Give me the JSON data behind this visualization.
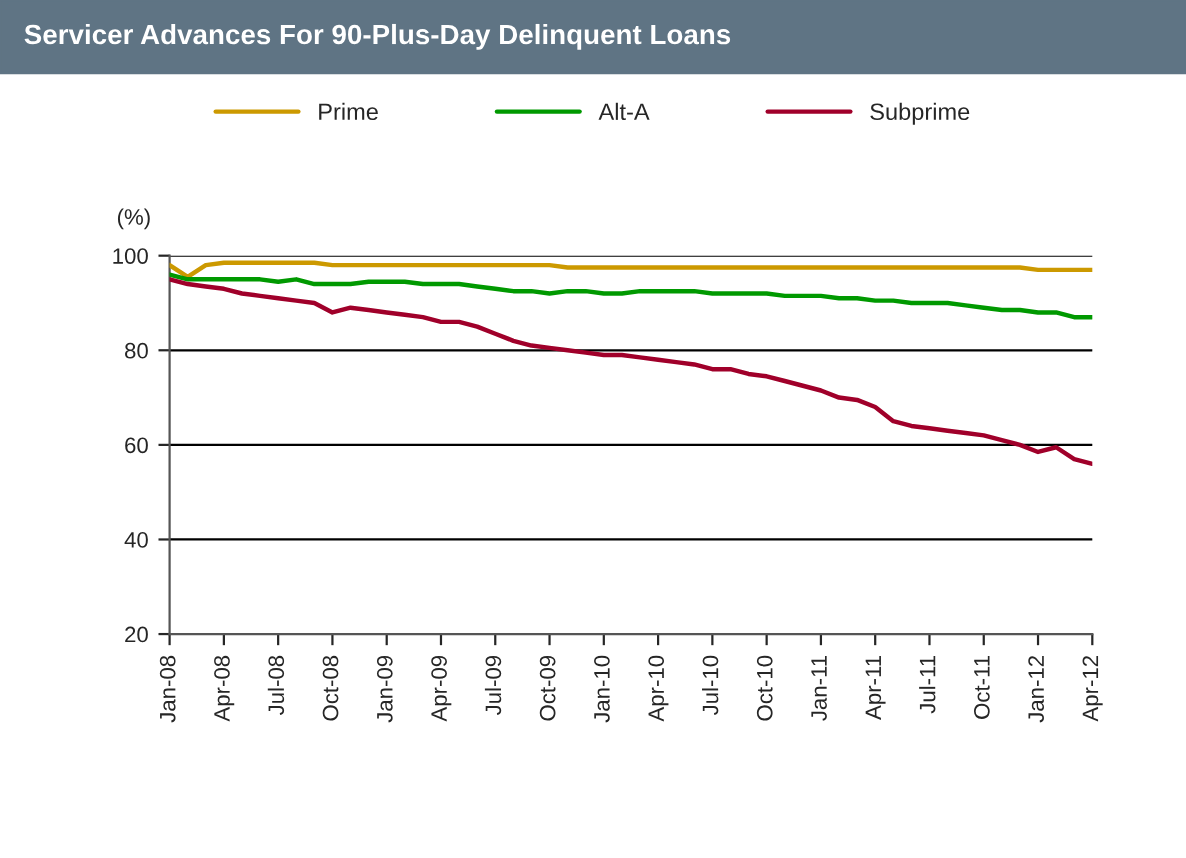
{
  "chart_data": {
    "type": "line",
    "title": "Servicer Advances For 90-Plus-Day Delinquent Loans",
    "ylabel": "(%)",
    "categories": [
      "Jan-08",
      null,
      null,
      "Apr-08",
      null,
      null,
      "Jul-08",
      null,
      null,
      "Oct-08",
      null,
      null,
      "Jan-09",
      null,
      null,
      "Apr-09",
      null,
      null,
      "Jul-09",
      null,
      null,
      "Oct-09",
      null,
      null,
      "Jan-10",
      null,
      null,
      "Apr-10",
      null,
      null,
      "Jul-10",
      null,
      null,
      "Oct-10",
      null,
      null,
      "Jan-11",
      null,
      null,
      "Apr-11",
      null,
      null,
      "Jul-11",
      null,
      null,
      "Oct-11",
      null,
      null,
      "Jan-12",
      null,
      null,
      "Apr-12"
    ],
    "series": [
      {
        "name": "Prime",
        "color": "#cc9900",
        "values": [
          98,
          95.5,
          98,
          98.5,
          98.5,
          98.5,
          98.5,
          98.5,
          98.5,
          98,
          98,
          98,
          98,
          98,
          98,
          98,
          98,
          98,
          98,
          98,
          98,
          98,
          97.5,
          97.5,
          97.5,
          97.5,
          97.5,
          97.5,
          97.5,
          97.5,
          97.5,
          97.5,
          97.5,
          97.5,
          97.5,
          97.5,
          97.5,
          97.5,
          97.5,
          97.5,
          97.5,
          97.5,
          97.5,
          97.5,
          97.5,
          97.5,
          97.5,
          97.5,
          97,
          97,
          97,
          97
        ]
      },
      {
        "name": "Alt-A",
        "color": "#009900",
        "values": [
          96,
          95,
          95,
          95,
          95,
          95,
          94.5,
          95,
          94,
          94,
          94,
          94.5,
          94.5,
          94.5,
          94,
          94,
          94,
          93.5,
          93,
          92.5,
          92.5,
          92,
          92.5,
          92.5,
          92,
          92,
          92.5,
          92.5,
          92.5,
          92.5,
          92,
          92,
          92,
          92,
          91.5,
          91.5,
          91.5,
          91,
          91,
          90.5,
          90.5,
          90,
          90,
          90,
          89.5,
          89,
          88.5,
          88.5,
          88,
          88,
          87,
          87
        ]
      },
      {
        "name": "Subprime",
        "color": "#a0002a",
        "values": [
          95,
          94,
          93.5,
          93,
          92,
          91.5,
          91,
          90.5,
          90,
          88,
          89,
          88.5,
          88,
          87.5,
          87,
          86,
          86,
          85,
          83.5,
          82,
          81,
          80.5,
          80,
          79.5,
          79,
          79,
          78.5,
          78,
          77.5,
          77,
          76,
          76,
          75,
          74.5,
          73.5,
          72.5,
          71.5,
          70,
          69.5,
          68,
          65,
          64,
          63.5,
          63,
          62.5,
          62,
          61,
          60,
          58.5,
          59.5,
          57,
          56
        ]
      }
    ],
    "ylim": [
      20,
      100
    ],
    "yticks": [
      20,
      40,
      60,
      80,
      100
    ],
    "grid": "y",
    "legend": "top",
    "marker": "none",
    "line_style": "solid"
  }
}
